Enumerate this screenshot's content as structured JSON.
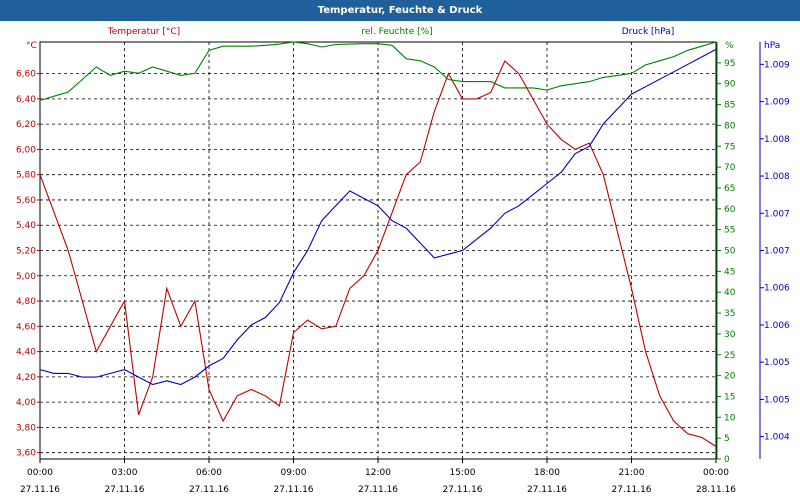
{
  "window": {
    "title": "Temperatur, Feuchte & Druck"
  },
  "colors": {
    "temperature": "#c00000",
    "humidity": "#008000",
    "pressure": "#0000c0",
    "grid": "#000000",
    "titlebar": "#1f5f9a"
  },
  "chart_data": {
    "type": "line",
    "title": "Temperatur, Feuchte & Druck",
    "x_labels": [
      {
        "time": "00:00",
        "date": "27.11.16"
      },
      {
        "time": "03:00",
        "date": "27.11.16"
      },
      {
        "time": "06:00",
        "date": "27.11.16"
      },
      {
        "time": "09:00",
        "date": "27.11.16"
      },
      {
        "time": "12:00",
        "date": "27.11.16"
      },
      {
        "time": "15:00",
        "date": "27.11.16"
      },
      {
        "time": "18:00",
        "date": "27.11.16"
      },
      {
        "time": "21:00",
        "date": "27.11.16"
      },
      {
        "time": "00:00",
        "date": "28.11.16"
      }
    ],
    "xlim": [
      0,
      24
    ],
    "axes": {
      "temperature": {
        "label": "Temperatur [°C]",
        "unit": "°C",
        "ylim": [
          3.55,
          6.85
        ],
        "ticks": [
          3.6,
          3.8,
          4.0,
          4.2,
          4.4,
          4.6,
          4.8,
          5.0,
          5.2,
          5.4,
          5.6,
          5.8,
          6.0,
          6.2,
          6.4,
          6.6
        ],
        "tick_labels": [
          "3,60",
          "3,80",
          "4,00",
          "4,20",
          "4,40",
          "4,60",
          "4,80",
          "5,00",
          "5,20",
          "5,40",
          "5,60",
          "5,80",
          "6,00",
          "6,20",
          "6,40",
          "6,60"
        ]
      },
      "humidity": {
        "label": "rel. Feuchte [%]",
        "unit": "%",
        "ylim": [
          0,
          100
        ],
        "ticks": [
          0,
          5,
          10,
          15,
          20,
          25,
          30,
          35,
          40,
          45,
          50,
          55,
          60,
          65,
          70,
          75,
          80,
          85,
          90,
          95
        ],
        "tick_labels": [
          "0",
          "5",
          "10",
          "15",
          "20",
          "25",
          "30",
          "35",
          "40",
          "45",
          "50",
          "55",
          "60",
          "65",
          "70",
          "75",
          "80",
          "85",
          "90",
          "95"
        ]
      },
      "pressure": {
        "label": "Druck [hPa]",
        "unit": "hPa",
        "ylim": [
          1003.7,
          1009.3
        ],
        "ticks": [
          1004.0,
          1004.5,
          1005.0,
          1005.5,
          1006.0,
          1006.5,
          1007.0,
          1007.5,
          1008.0,
          1008.5,
          1009.0
        ],
        "tick_labels": [
          "1.004",
          "1.005",
          "1.005",
          "1.006",
          "1.006",
          "1.007",
          "1.007",
          "1.008",
          "1.008",
          "1.009",
          "1.009"
        ]
      }
    },
    "series": [
      {
        "name": "Temperatur",
        "axis": "temperature",
        "color": "#c00000",
        "x": [
          0,
          0.5,
          1,
          1.5,
          2,
          2.5,
          3,
          3.5,
          4,
          4.5,
          5,
          5.5,
          6,
          6.5,
          7,
          7.5,
          8,
          8.5,
          9,
          9.5,
          10,
          10.5,
          11,
          11.5,
          12,
          12.5,
          13,
          13.5,
          14,
          14.5,
          15,
          15.5,
          16,
          16.5,
          17,
          17.5,
          18,
          18.5,
          19,
          19.5,
          20,
          20.5,
          21,
          21.5,
          22,
          22.5,
          23,
          23.5,
          24
        ],
        "values": [
          5.8,
          5.5,
          5.2,
          4.8,
          4.4,
          4.6,
          4.8,
          3.9,
          4.2,
          4.9,
          4.6,
          4.8,
          4.1,
          3.85,
          4.05,
          4.1,
          4.05,
          3.97,
          4.55,
          4.65,
          4.58,
          4.6,
          4.9,
          5.0,
          5.2,
          5.5,
          5.8,
          5.9,
          6.3,
          6.6,
          6.4,
          6.4,
          6.45,
          6.7,
          6.6,
          6.4,
          6.2,
          6.08,
          6.0,
          6.05,
          5.8,
          5.35,
          4.9,
          4.4,
          4.05,
          3.85,
          3.75,
          3.72,
          3.65
        ]
      },
      {
        "name": "rel. Feuchte",
        "axis": "humidity",
        "color": "#008000",
        "x": [
          0,
          0.5,
          1,
          1.5,
          2,
          2.5,
          3,
          3.5,
          4,
          4.5,
          5,
          5.5,
          6,
          6.5,
          7,
          7.5,
          8,
          8.5,
          9,
          9.5,
          10,
          10.5,
          11,
          11.5,
          12,
          12.5,
          13,
          13.5,
          14,
          14.5,
          15,
          15.5,
          16,
          16.5,
          17,
          17.5,
          18,
          18.5,
          19,
          19.5,
          20,
          20.5,
          21,
          21.5,
          22,
          22.5,
          23,
          23.5,
          24
        ],
        "values": [
          86.0,
          87.0,
          88.0,
          91.0,
          94.0,
          92.0,
          93.0,
          92.5,
          94.0,
          93.0,
          92.0,
          92.5,
          98.0,
          99.0,
          99.0,
          99.0,
          99.2,
          99.5,
          100.0,
          99.6,
          98.8,
          99.4,
          99.5,
          99.6,
          99.6,
          99.2,
          96.0,
          95.5,
          94.0,
          91.0,
          90.5,
          90.5,
          90.5,
          89.0,
          89.0,
          89.0,
          88.5,
          89.5,
          90.0,
          90.5,
          91.5,
          92.0,
          92.5,
          94.5,
          95.5,
          96.5,
          98.0,
          99.0,
          100.0
        ]
      },
      {
        "name": "Druck",
        "axis": "pressure",
        "color": "#0000c0",
        "x": [
          0,
          0.5,
          1,
          1.5,
          2,
          2.5,
          3,
          3.5,
          4,
          4.5,
          5,
          5.5,
          6,
          6.5,
          7,
          7.5,
          8,
          8.5,
          9,
          9.5,
          10,
          10.5,
          11,
          11.5,
          12,
          12.5,
          13,
          13.5,
          14,
          14.5,
          15,
          15.5,
          16,
          16.5,
          17,
          17.5,
          18,
          18.5,
          19,
          19.5,
          20,
          20.5,
          21,
          21.5,
          22,
          22.5,
          23,
          23.5,
          24
        ],
        "values": [
          1004.9,
          1004.85,
          1004.85,
          1004.8,
          1004.8,
          1004.85,
          1004.9,
          1004.8,
          1004.7,
          1004.75,
          1004.7,
          1004.8,
          1004.95,
          1005.05,
          1005.3,
          1005.5,
          1005.6,
          1005.8,
          1006.2,
          1006.5,
          1006.9,
          1007.1,
          1007.3,
          1007.2,
          1007.1,
          1006.9,
          1006.8,
          1006.6,
          1006.4,
          1006.45,
          1006.5,
          1006.65,
          1006.8,
          1007.0,
          1007.1,
          1007.25,
          1007.4,
          1007.55,
          1007.8,
          1007.9,
          1008.2,
          1008.4,
          1008.6,
          1008.7,
          1008.8,
          1008.9,
          1009.0,
          1009.1,
          1009.2
        ]
      }
    ],
    "legend": "top",
    "grid": true
  }
}
